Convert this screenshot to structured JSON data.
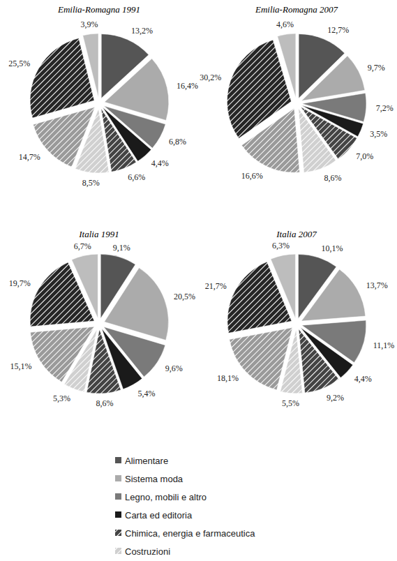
{
  "chart_data": [
    {
      "type": "pie",
      "title": "Emilia-Romagna 1991",
      "categories": [
        "Alimentare",
        "Sistema moda",
        "Legno, mobili e altro",
        "Carta ed editoria",
        "Chimica, energia e farmaceutica",
        "Costruzioni",
        null,
        null,
        null
      ],
      "values": [
        13.2,
        16.4,
        6.8,
        4.4,
        6.6,
        8.5,
        14.7,
        25.5,
        3.9
      ],
      "value_labels": [
        "13,2%",
        "16,4%",
        "6,8%",
        "4,4%",
        "6,6%",
        "8,5%",
        "14,7%",
        "25,5%",
        "3,9%"
      ],
      "colors": [
        "#555555",
        "#ababab",
        "#7a7a7a",
        "#1a1a1a",
        "#444444",
        "#d0d0d0",
        "#9a9a9a",
        "#262626",
        "#bdbdbd"
      ],
      "data_labels": true
    },
    {
      "type": "pie",
      "title": "Emilia-Romagna 2007",
      "categories": [
        "Alimentare",
        "Sistema moda",
        "Legno, mobili e altro",
        "Carta ed editoria",
        "Chimica, energia e farmaceutica",
        "Costruzioni",
        null,
        null,
        null
      ],
      "values": [
        12.7,
        9.7,
        7.2,
        3.5,
        7.0,
        8.6,
        16.6,
        30.2,
        4.6
      ],
      "value_labels": [
        "12,7%",
        "9,7%",
        "7,2%",
        "3,5%",
        "7,0%",
        "8,6%",
        "16,6%",
        "30,2%",
        "4,6%"
      ],
      "colors": [
        "#555555",
        "#ababab",
        "#7a7a7a",
        "#1a1a1a",
        "#444444",
        "#d0d0d0",
        "#9a9a9a",
        "#262626",
        "#bdbdbd"
      ],
      "data_labels": true
    },
    {
      "type": "pie",
      "title": "Italia 1991",
      "categories": [
        "Alimentare",
        "Sistema moda",
        "Legno, mobili e altro",
        "Carta ed editoria",
        "Chimica, energia e farmaceutica",
        "Costruzioni",
        null,
        null,
        null
      ],
      "values": [
        9.1,
        20.5,
        9.6,
        5.4,
        8.6,
        5.3,
        15.1,
        19.7,
        6.7
      ],
      "value_labels": [
        "9,1%",
        "20,5%",
        "9,6%",
        "5,4%",
        "8,6%",
        "5,3%",
        "15,1%",
        "19,7%",
        "6,7%"
      ],
      "colors": [
        "#555555",
        "#ababab",
        "#7a7a7a",
        "#1a1a1a",
        "#444444",
        "#d0d0d0",
        "#9a9a9a",
        "#262626",
        "#bdbdbd"
      ],
      "data_labels": true
    },
    {
      "type": "pie",
      "title": "Italia 2007",
      "categories": [
        "Alimentare",
        "Sistema moda",
        "Legno, mobili e altro",
        "Carta ed editoria",
        "Chimica, energia e farmaceutica",
        "Costruzioni",
        null,
        null,
        null
      ],
      "values": [
        10.1,
        13.7,
        11.1,
        4.4,
        9.2,
        5.5,
        18.1,
        21.7,
        6.3
      ],
      "value_labels": [
        "10,1%",
        "13,7%",
        "11,1%",
        "4,4%",
        "9,2%",
        "5,5%",
        "18,1%",
        "21,7%",
        "6,3%"
      ],
      "colors": [
        "#555555",
        "#ababab",
        "#7a7a7a",
        "#1a1a1a",
        "#444444",
        "#d0d0d0",
        "#9a9a9a",
        "#262626",
        "#bdbdbd"
      ],
      "data_labels": true,
      "legend": "bottom"
    }
  ]
}
